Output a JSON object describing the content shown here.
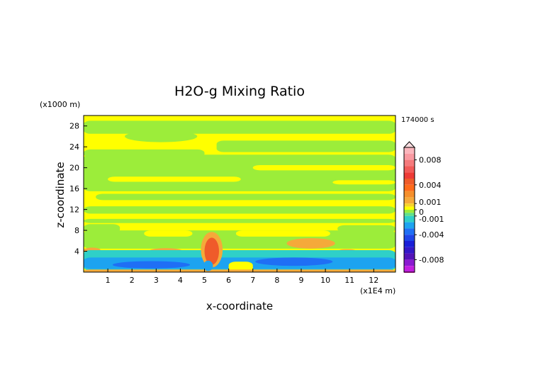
{
  "chart_data": {
    "type": "heatmap",
    "title": "H2O-g Mixing Ratio",
    "xlabel": "x-coordinate",
    "ylabel": "z-coordinate",
    "x_unit": "(x1E4 m)",
    "y_unit": "(x1000 m)",
    "time_label": "174000 s",
    "xlim": [
      0,
      12.9
    ],
    "ylim": [
      0,
      30
    ],
    "x_ticks": [
      "1",
      "2",
      "3",
      "4",
      "5",
      "6",
      "7",
      "8",
      "9",
      "10",
      "11",
      "12"
    ],
    "y_ticks": [
      "4",
      "8",
      "12",
      "16",
      "20",
      "24",
      "28"
    ],
    "grid": false,
    "colorbar": {
      "position": "right",
      "labels": [
        "0.008",
        "0.004",
        "0.001",
        "0",
        "-0.001",
        "-0.004",
        "-0.008"
      ],
      "levels": [
        {
          "value": 0.01,
          "color": "#fbb6bd"
        },
        {
          "value": 0.009,
          "color": "#f99aa2"
        },
        {
          "value": 0.008,
          "color": "#f57a7c"
        },
        {
          "value": 0.007,
          "color": "#f25a58"
        },
        {
          "value": 0.006,
          "color": "#ee3b36"
        },
        {
          "value": 0.005,
          "color": "#ef5b2a"
        },
        {
          "value": 0.004,
          "color": "#ff6a1a"
        },
        {
          "value": 0.003,
          "color": "#f58f2c"
        },
        {
          "value": 0.002,
          "color": "#f5a93a"
        },
        {
          "value": 0.001,
          "color": "#f7d22a"
        },
        {
          "value": 0.0005,
          "color": "#ffff00"
        },
        {
          "value": 0,
          "color": "#9ced3a"
        },
        {
          "value": -0.0005,
          "color": "#5fe08a"
        },
        {
          "value": -0.001,
          "color": "#2fd0c8"
        },
        {
          "value": -0.002,
          "color": "#1da3f0"
        },
        {
          "value": -0.003,
          "color": "#1f6ff5"
        },
        {
          "value": -0.004,
          "color": "#1e45e8"
        },
        {
          "value": -0.005,
          "color": "#1a1fd8"
        },
        {
          "value": -0.006,
          "color": "#3418c8"
        },
        {
          "value": -0.007,
          "color": "#5414b8"
        },
        {
          "value": -0.008,
          "color": "#8a1ad0"
        },
        {
          "value": -0.009,
          "color": "#c21ee0"
        },
        {
          "value": -0.01,
          "color": "#ff1fc4"
        }
      ]
    },
    "colors": {
      "yellow": "#ffff00",
      "green": "#9ced3a",
      "light_green": "#b6f03c",
      "cyan": "#2fd0c8",
      "teal": "#5fe08a",
      "blue": "#1da3f0",
      "deep_blue": "#1f6ff5",
      "orange": "#f5a93a",
      "dark_orange": "#ef5b2a"
    }
  }
}
